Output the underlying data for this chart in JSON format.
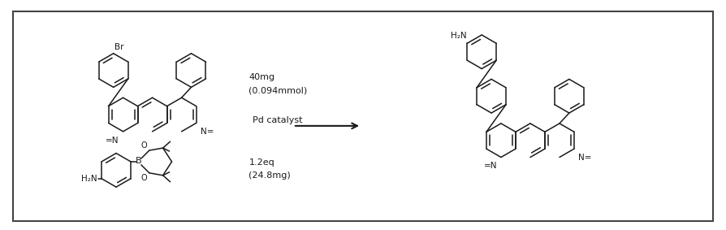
{
  "background_color": "#ffffff",
  "border_color": "#444444",
  "line_color": "#1a1a1a",
  "fig_width": 8.95,
  "fig_height": 2.83,
  "label_40mg": "40mg",
  "label_094mmol": "(0.094mmol)",
  "label_pd": "Pd catalyst",
  "label_12eq": "1.2eq",
  "label_248mg": "(24.8mg)"
}
